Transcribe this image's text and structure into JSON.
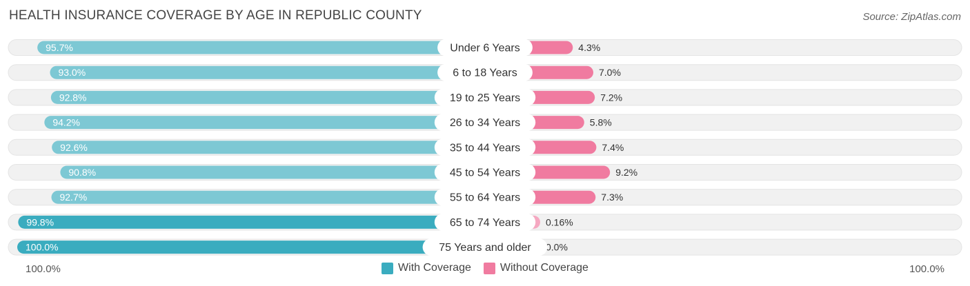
{
  "header": {
    "title": "HEALTH INSURANCE COVERAGE BY AGE IN REPUBLIC COUNTY",
    "source": "Source: ZipAtlas.com"
  },
  "colors": {
    "with_coverage": "#3aacbf",
    "with_coverage_light": "#7dc8d4",
    "without_coverage": "#f07ba0",
    "without_coverage_light": "#f5a8c1",
    "track": "#f1f1f1"
  },
  "chart_data": {
    "type": "bar",
    "orientation": "horizontal-diverging",
    "title": "HEALTH INSURANCE COVERAGE BY AGE IN REPUBLIC COUNTY",
    "categories": [
      "Under 6 Years",
      "6 to 18 Years",
      "19 to 25 Years",
      "26 to 34 Years",
      "35 to 44 Years",
      "45 to 54 Years",
      "55 to 64 Years",
      "65 to 74 Years",
      "75 Years and older"
    ],
    "series": [
      {
        "name": "With Coverage",
        "values": [
          95.7,
          93.0,
          92.8,
          94.2,
          92.6,
          90.8,
          92.7,
          99.8,
          100.0
        ],
        "labels": [
          "95.7%",
          "93.0%",
          "92.8%",
          "94.2%",
          "92.6%",
          "90.8%",
          "92.7%",
          "99.8%",
          "100.0%"
        ]
      },
      {
        "name": "Without Coverage",
        "values": [
          4.3,
          7.0,
          7.2,
          5.8,
          7.4,
          9.2,
          7.3,
          0.16,
          0.0
        ],
        "labels": [
          "4.3%",
          "7.0%",
          "7.2%",
          "5.8%",
          "7.4%",
          "9.2%",
          "7.3%",
          "0.16%",
          "0.0%"
        ]
      }
    ],
    "xlim": [
      0,
      100
    ],
    "axis_labels": {
      "left": "100.0%",
      "right": "100.0%"
    },
    "legend": {
      "position": "bottom-center",
      "items": [
        "With Coverage",
        "Without Coverage"
      ]
    }
  }
}
